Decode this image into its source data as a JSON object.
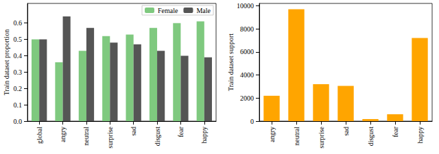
{
  "chart_data": [
    {
      "type": "bar",
      "categories": [
        "global",
        "angry",
        "neutral",
        "surprise",
        "sad",
        "disgust",
        "fear",
        "happy"
      ],
      "series": [
        {
          "name": "Female",
          "color": "#7fc97f",
          "values": [
            0.5,
            0.36,
            0.43,
            0.52,
            0.53,
            0.57,
            0.6,
            0.61
          ]
        },
        {
          "name": "Male",
          "color": "#555555",
          "values": [
            0.5,
            0.64,
            0.57,
            0.48,
            0.47,
            0.43,
            0.4,
            0.39
          ]
        }
      ],
      "y_label": "Train dataset proportion",
      "ylim": [
        0,
        0.72
      ],
      "yticks": [
        {
          "value": 0,
          "label": "0.0"
        },
        0.1,
        0.2,
        0.3,
        0.4,
        0.5,
        0.6
      ],
      "legend": "upper right",
      "grid": false
    },
    {
      "type": "bar",
      "categories": [
        "angry",
        "neutral",
        "surprise",
        "sad",
        "disgust",
        "fear",
        "happy"
      ],
      "values": [
        2200,
        9700,
        3200,
        3050,
        180,
        600,
        7200
      ],
      "color": "#ffa500",
      "y_label": "Train dataset support",
      "ylim": [
        0,
        10200
      ],
      "yticks": [
        0,
        2000,
        4000,
        6000,
        8000,
        10000
      ],
      "grid": false
    }
  ]
}
